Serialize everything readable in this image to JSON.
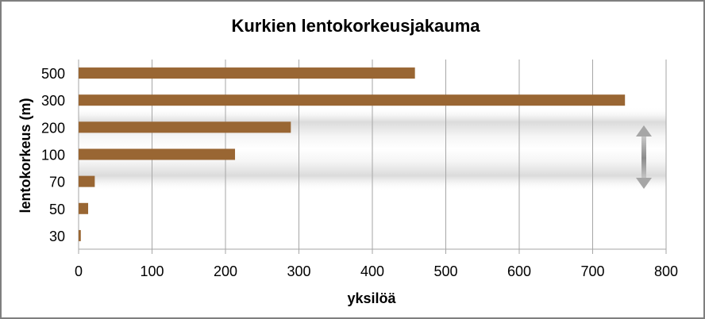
{
  "chart_data": {
    "type": "bar",
    "orientation": "horizontal",
    "title": "Kurkien lentokorkeusjakauma",
    "xlabel": "yksilöä",
    "ylabel": "lentokorkeus (m)",
    "categories": [
      "500",
      "300",
      "200",
      "100",
      "70",
      "50",
      "30"
    ],
    "values": [
      458,
      744,
      289,
      213,
      22,
      13,
      3
    ],
    "xlim": [
      0,
      800
    ],
    "xticks": [
      "0",
      "100",
      "200",
      "300",
      "400",
      "500",
      "600",
      "700",
      "800"
    ],
    "grid": "vertical",
    "legend": "none",
    "bar_color": "#996633",
    "highlight_band": {
      "from_category": "200",
      "to_category": "70"
    }
  }
}
